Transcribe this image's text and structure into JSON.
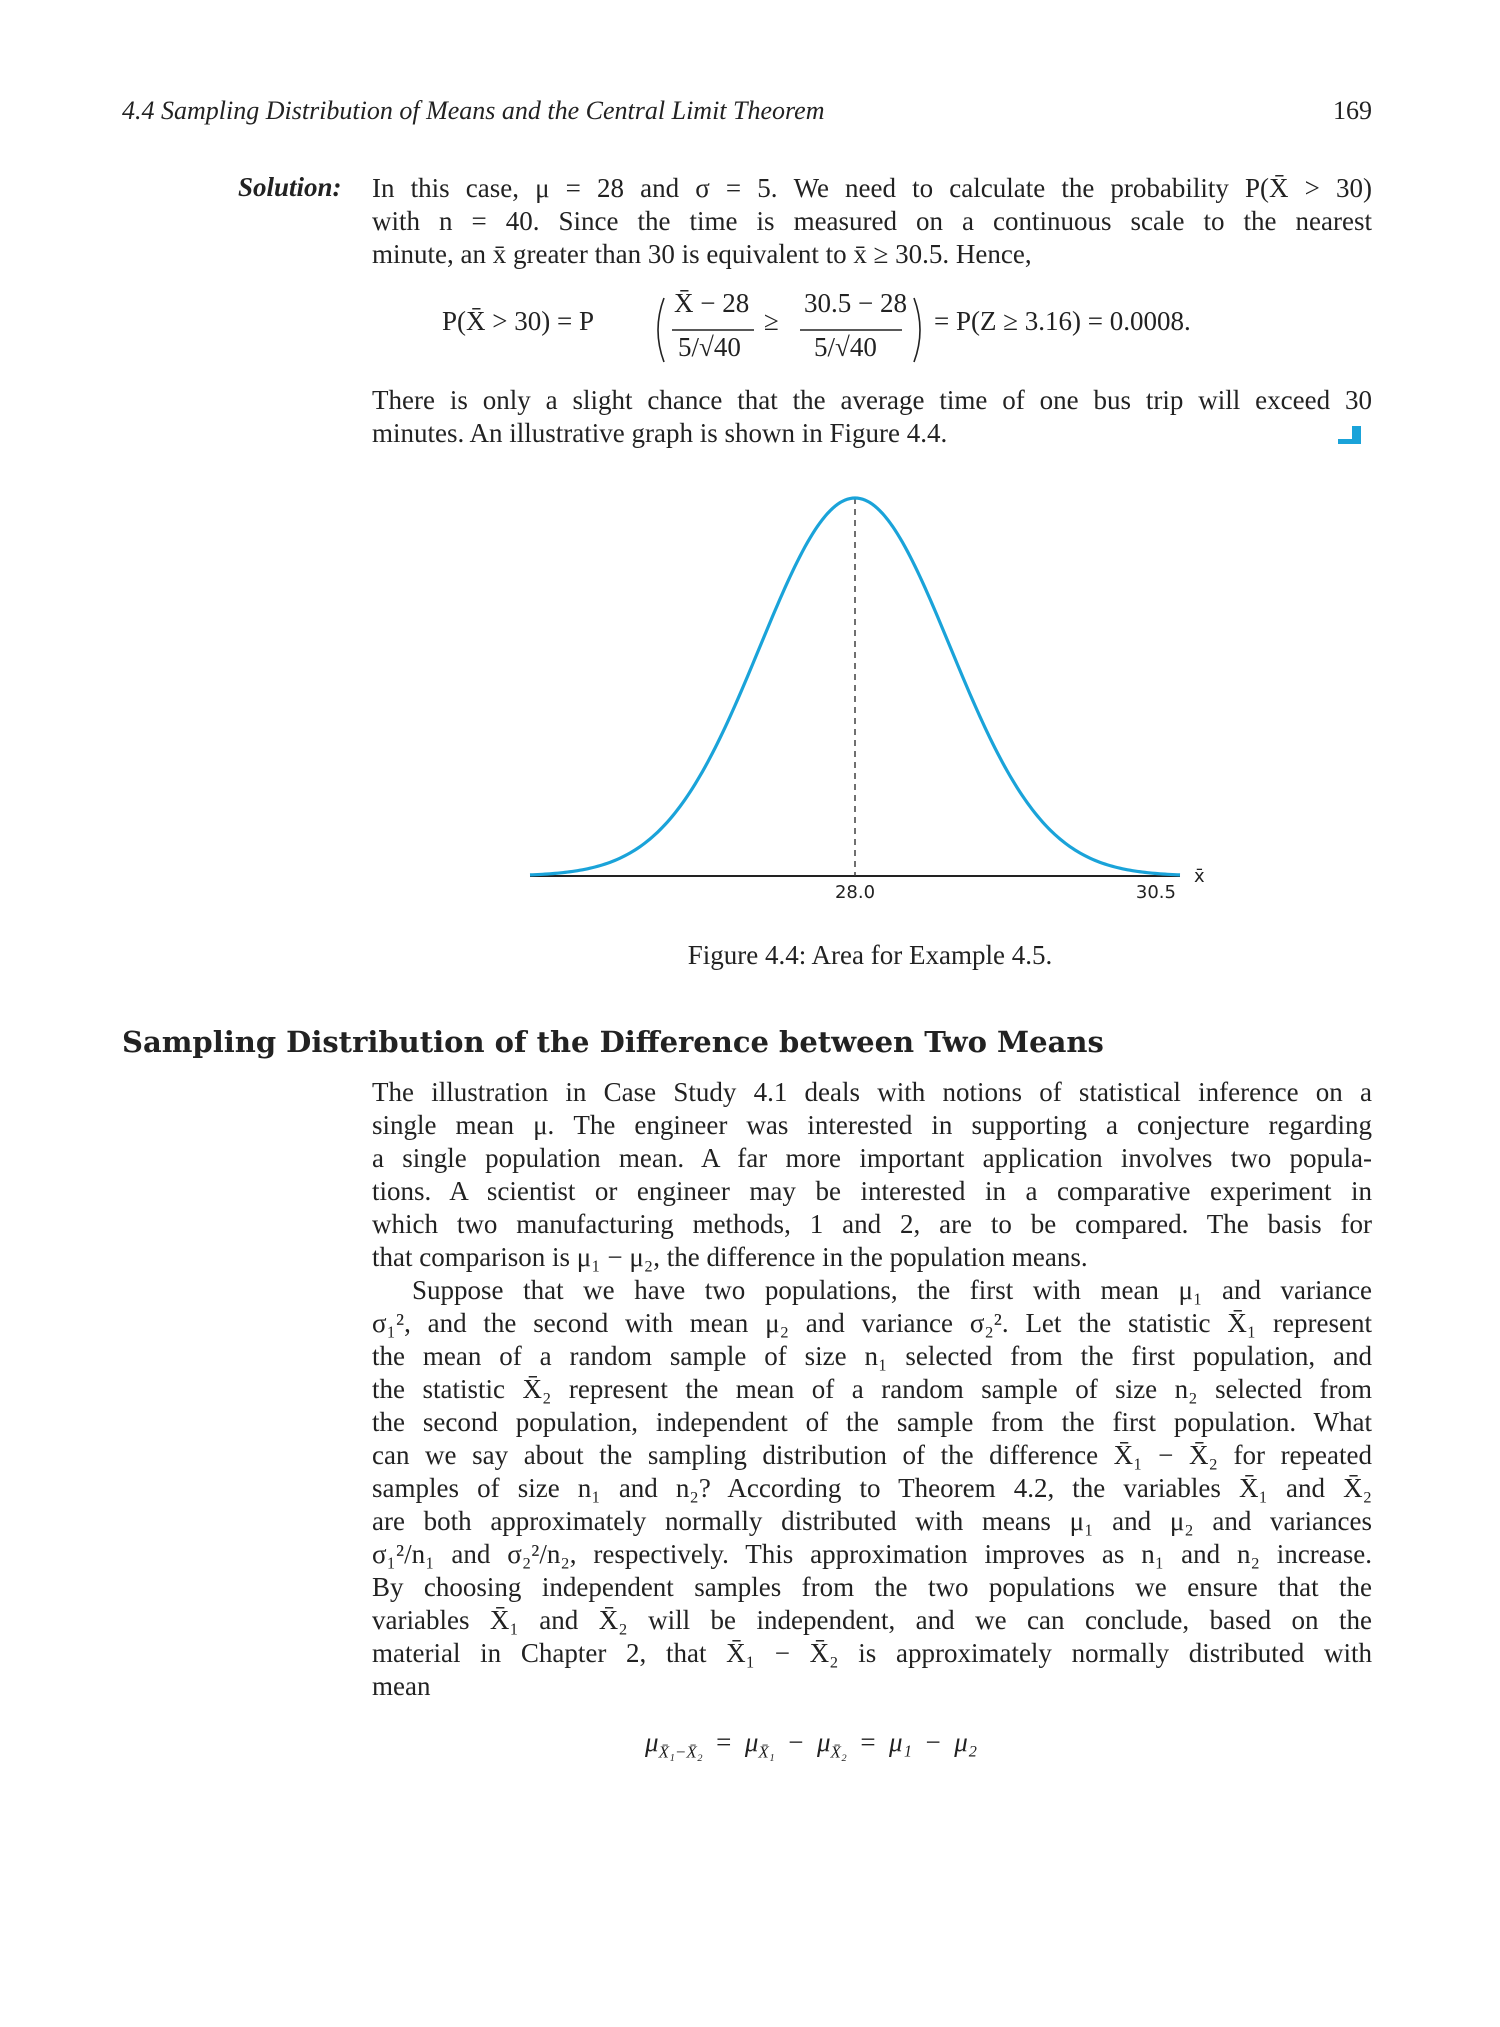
{
  "header": {
    "running_title": "4.4 Sampling Distribution of Means and the Central Limit Theorem",
    "page_number": "169"
  },
  "solution": {
    "label": "Solution:",
    "lines": [
      "In this case, μ = 28 and σ = 5. We need to calculate the probability P(X̄ > 30)",
      "with n = 40. Since the time is measured on a continuous scale to the nearest",
      "minute, an x̄ greater than 30 is equivalent to x̄ ≥ 30.5. Hence,"
    ],
    "equation": {
      "lhs": "P(X̄ > 30) = P",
      "frac1_num": "X̄ − 28",
      "frac1_den": "5/√40",
      "geq": "≥",
      "frac2_num": "30.5 − 28",
      "frac2_den": "5/√40",
      "rhs": "= P(Z ≥ 3.16) = 0.0008."
    },
    "conclusion_lines": [
      "There is only a slight chance that the average time of one bus trip will exceed 30",
      "minutes. An illustrative graph is shown in Figure 4.4."
    ]
  },
  "figure": {
    "caption": "Figure 4.4: Area for Example 4.5.",
    "curve_color": "#1aa3d9"
  },
  "chart_data": {
    "type": "line",
    "title": "",
    "mean": 28.0,
    "sd": 0.79,
    "xlim": [
      25.3,
      30.7
    ],
    "x_ticks": [
      "28.0",
      "30.5"
    ],
    "x_tick_values": [
      28.0,
      30.5
    ],
    "xlabel": "x̄",
    "ylabel": "",
    "reference_line_at": 28.0,
    "series": [
      {
        "color": "#1aa3d9"
      }
    ]
  },
  "section": {
    "heading": "Sampling Distribution of the Difference between Two Means",
    "paragraph1": [
      "The illustration in Case Study 4.1 deals with notions of statistical inference on a",
      "single mean μ. The engineer was interested in supporting a conjecture regarding",
      "a single population mean. A far more important application involves two popula-",
      "tions. A scientist or engineer may be interested in a comparative experiment in",
      "which two manufacturing methods, 1 and 2, are to be compared. The basis for",
      "that comparison is μ₁ − μ₂, the difference in the population means."
    ],
    "paragraph2": [
      "Suppose that we have two populations, the first with mean μ₁ and variance",
      "σ₁², and the second with mean μ₂ and variance σ₂². Let the statistic X̄₁ represent",
      "the mean of a random sample of size n₁ selected from the first population, and",
      "the statistic X̄₂ represent the mean of a random sample of size n₂ selected from",
      "the second population, independent of the sample from the first population. What",
      "can we say about the sampling distribution of the difference X̄₁ − X̄₂ for repeated",
      "samples of size n₁ and n₂? According to Theorem 4.2, the variables X̄₁ and X̄₂",
      "are both approximately normally distributed with means μ₁ and μ₂ and variances",
      "σ₁²/n₁ and σ₂²/n₂, respectively. This approximation improves as n₁ and n₂ increase.",
      "By choosing independent samples from the two populations we ensure that the",
      "variables X̄₁ and X̄₂ will be independent, and we can conclude, based on the",
      "material in Chapter 2, that X̄₁ − X̄₂ is approximately normally distributed with",
      "mean"
    ],
    "final_equation": "μ_{X̄₁−X̄₂} = μ_{X̄₁} − μ_{X̄₂} = μ₁ − μ₂"
  }
}
